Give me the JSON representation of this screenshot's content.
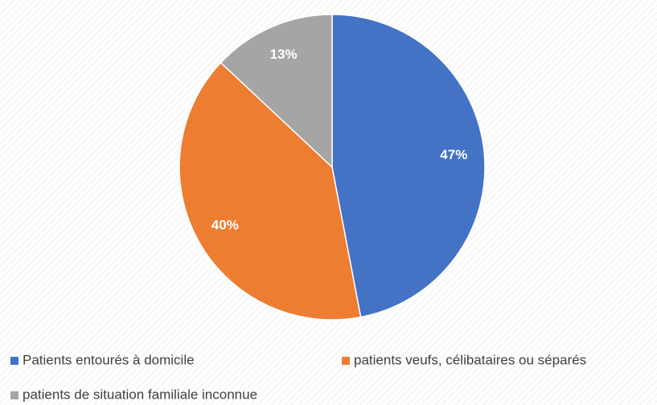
{
  "chart_data": {
    "type": "pie",
    "categories": [
      "Patients entourés à domicile",
      "patients veufs, célibataires ou séparés",
      "patients de situation familiale inconnue"
    ],
    "values": [
      47,
      40,
      13
    ],
    "value_labels": [
      "47%",
      "40%",
      "13%"
    ],
    "colors": [
      "#4472c4",
      "#ed7d31",
      "#a5a5a5"
    ]
  }
}
